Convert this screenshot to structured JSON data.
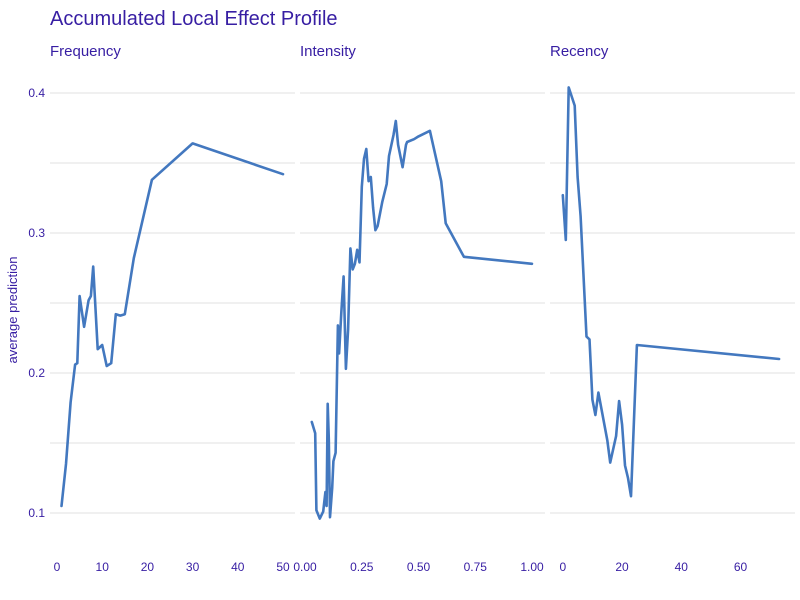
{
  "colors": {
    "text": "#371ea3",
    "line": "#4378bf",
    "grid": "#e0e0e0"
  },
  "chart_data": {
    "type": "line",
    "title": "Accumulated Local Effect Profile",
    "ylabel": "average prediction",
    "ylim": [
      0.08,
      0.415
    ],
    "yticks": [
      0.1,
      0.2,
      0.3,
      0.4
    ],
    "ytick_labels": [
      "0.1",
      "0.2",
      "0.3",
      "0.4"
    ],
    "grid": true,
    "panels": [
      {
        "name": "Frequency",
        "xlim": [
          0,
          50
        ],
        "xticks": [
          0,
          10,
          20,
          30,
          40,
          50
        ],
        "xtick_labels": [
          "0",
          "10",
          "20",
          "30",
          "40",
          "50"
        ],
        "x": [
          1,
          2,
          3,
          4,
          4.5,
          5,
          6,
          7,
          7.5,
          8,
          9,
          10,
          11,
          12,
          13,
          14,
          15,
          17,
          21,
          30,
          50
        ],
        "y": [
          0.105,
          0.135,
          0.179,
          0.206,
          0.207,
          0.255,
          0.233,
          0.252,
          0.255,
          0.276,
          0.217,
          0.22,
          0.205,
          0.207,
          0.242,
          0.241,
          0.242,
          0.282,
          0.338,
          0.364,
          0.342
        ]
      },
      {
        "name": "Intensity",
        "xlim": [
          0,
          1
        ],
        "xticks": [
          0,
          0.25,
          0.5,
          0.75,
          1.0
        ],
        "xtick_labels": [
          "0.00",
          "0.25",
          "0.50",
          "0.75",
          "1.00"
        ],
        "x": [
          0.03,
          0.045,
          0.05,
          0.065,
          0.08,
          0.09,
          0.095,
          0.1,
          0.105,
          0.11,
          0.12,
          0.125,
          0.135,
          0.145,
          0.15,
          0.16,
          0.17,
          0.18,
          0.19,
          0.2,
          0.21,
          0.22,
          0.23,
          0.24,
          0.25,
          0.26,
          0.27,
          0.28,
          0.29,
          0.3,
          0.31,
          0.32,
          0.34,
          0.36,
          0.37,
          0.39,
          0.4,
          0.41,
          0.43,
          0.445,
          0.45,
          0.48,
          0.5,
          0.55,
          0.6,
          0.62,
          0.7,
          1.0
        ],
        "y": [
          0.165,
          0.157,
          0.102,
          0.096,
          0.101,
          0.115,
          0.105,
          0.178,
          0.153,
          0.097,
          0.118,
          0.137,
          0.143,
          0.234,
          0.214,
          0.243,
          0.269,
          0.203,
          0.231,
          0.289,
          0.274,
          0.278,
          0.288,
          0.279,
          0.333,
          0.353,
          0.36,
          0.337,
          0.34,
          0.318,
          0.302,
          0.305,
          0.322,
          0.335,
          0.355,
          0.37,
          0.38,
          0.363,
          0.347,
          0.363,
          0.365,
          0.367,
          0.369,
          0.373,
          0.337,
          0.307,
          0.283,
          0.278
        ]
      },
      {
        "name": "Recency",
        "xlim": [
          -5,
          75
        ],
        "xticks": [
          0,
          20,
          40,
          60
        ],
        "xtick_labels": [
          "0",
          "20",
          "40",
          "60"
        ],
        "x": [
          0,
          1,
          2,
          4,
          5,
          6,
          8,
          9,
          10,
          11,
          12,
          15,
          16,
          18,
          19,
          20,
          21,
          22,
          23,
          24,
          25,
          73
        ],
        "y": [
          0.327,
          0.295,
          0.404,
          0.391,
          0.34,
          0.312,
          0.226,
          0.224,
          0.181,
          0.17,
          0.186,
          0.152,
          0.136,
          0.155,
          0.18,
          0.163,
          0.134,
          0.125,
          0.112,
          0.165,
          0.22,
          0.21
        ]
      }
    ]
  }
}
